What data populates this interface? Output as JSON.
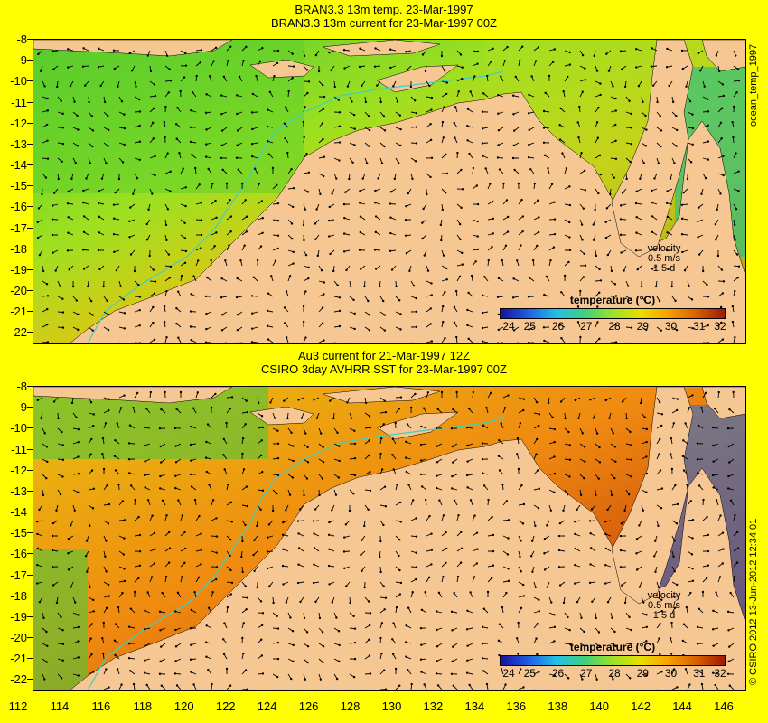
{
  "top": {
    "title_line1": "BRAN3.3 13m temp. 23-Mar-1997",
    "title_line2": "BRAN3.3 13m current for 23-Mar-1997 00Z",
    "side_label": "ocean_temp_1997",
    "velocity_label": "velocity",
    "velocity_value": "0.5 m/s",
    "velocity_scale": "1.5 d"
  },
  "bottom": {
    "title_line1": "Au3 current for 21-Mar-1997 12Z",
    "title_line2": "CSIRO 3day AVHRR SST for 23-Mar-1997 00Z",
    "side_label": "© CSIRO 2012 13-Jun-2012 12:34:01",
    "velocity_label": "velocity",
    "velocity_value": "0.5 m/s",
    "velocity_scale": "1.5 d"
  },
  "colorbar": {
    "title": "temperature (°C)",
    "labels": [
      "24",
      "25",
      "26",
      "27",
      "28",
      "29",
      "30",
      "31",
      "32"
    ],
    "colors": [
      "#1a0fa0",
      "#1e5fe0",
      "#22c0e8",
      "#3fd07a",
      "#9be228",
      "#e8e000",
      "#f5a000",
      "#d86000",
      "#a01808"
    ]
  },
  "axes": {
    "lat_labels": [
      "-8",
      "-9",
      "-10",
      "-11",
      "-12",
      "-13",
      "-14",
      "-15",
      "-16",
      "-17",
      "-18",
      "-19",
      "-20",
      "-21",
      "-22"
    ],
    "lon_labels": [
      "112",
      "114",
      "116",
      "118",
      "120",
      "122",
      "124",
      "126",
      "128",
      "130",
      "132",
      "134",
      "136",
      "138",
      "140",
      "142",
      "144",
      "146"
    ]
  },
  "colors": {
    "background": "#ffff00",
    "land": "#f7c793",
    "isobath": "#40d0c0"
  }
}
